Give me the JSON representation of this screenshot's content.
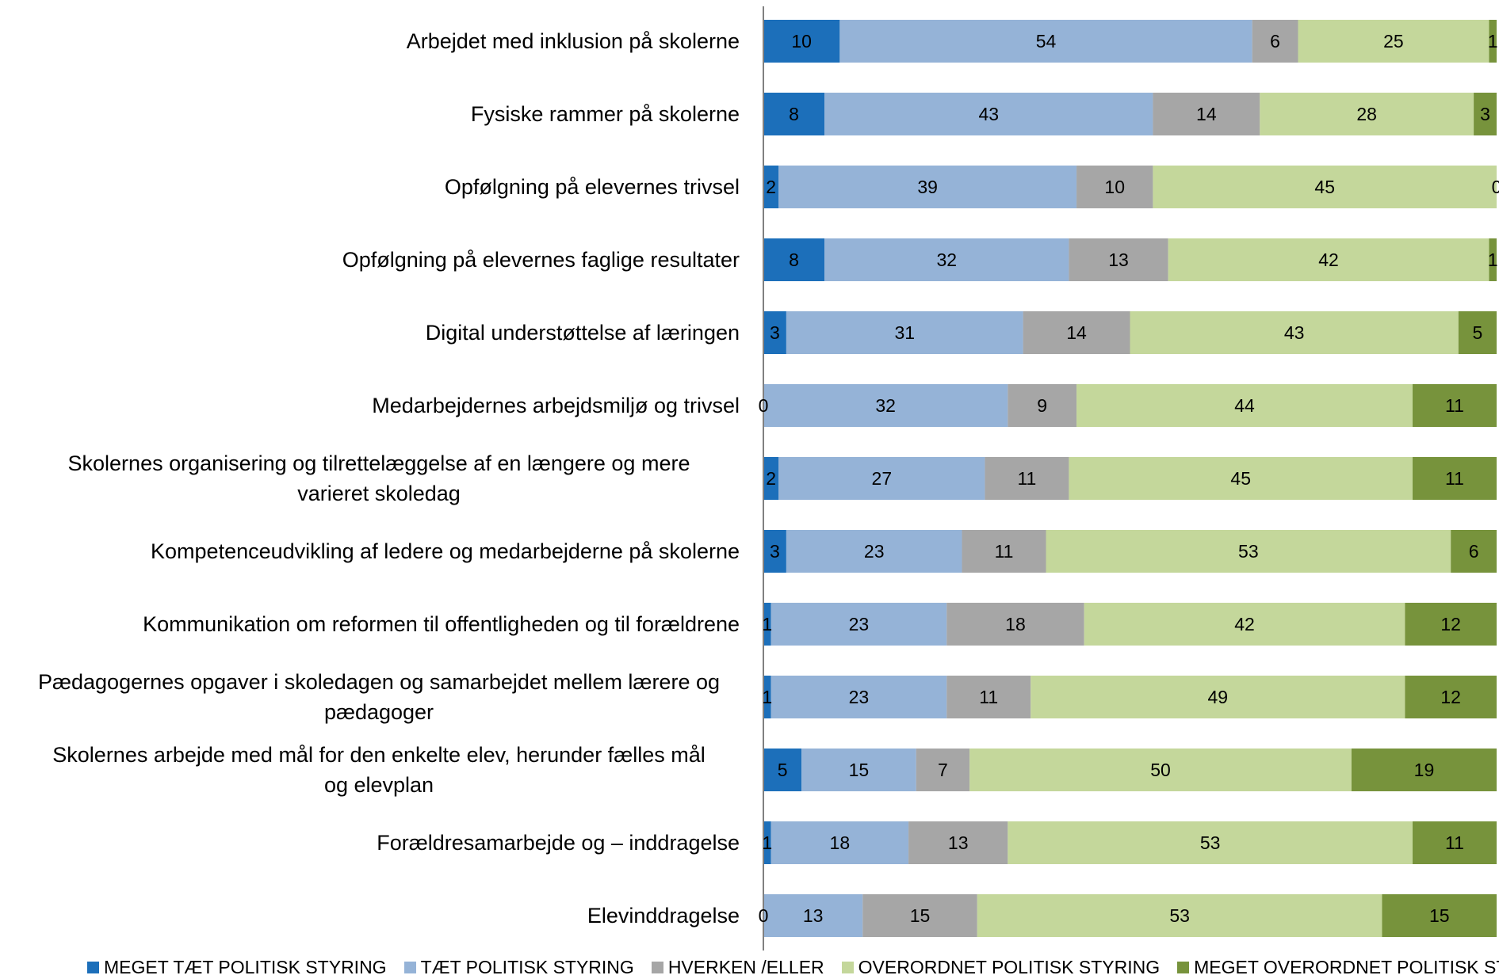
{
  "chart_data": {
    "type": "bar",
    "orientation": "horizontal",
    "stacked": true,
    "categories": [
      "Arbejdet med inklusion på skolerne",
      "Fysiske rammer på skolerne",
      "Opfølgning på elevernes trivsel",
      "Opfølgning på elevernes faglige resultater",
      "Digital understøttelse af læringen",
      "Medarbejdernes arbejdsmiljø og trivsel",
      "Skolernes organisering og tilrettelæggelse af en længere og mere varieret skoledag",
      "Kompetenceudvikling af ledere og medarbejderne på skolerne",
      "Kommunikation om reformen til offentligheden og til forældrene",
      "Pædagogernes opgaver i skoledagen og samarbejdet mellem lærere og pædagoger",
      "Skolernes arbejde med mål for den enkelte elev, herunder fælles mål og elevplan",
      "Forældresamarbejde og – inddragelse",
      "Elevinddragelse"
    ],
    "category_lines": [
      [
        "Arbejdet med inklusion på skolerne"
      ],
      [
        "Fysiske rammer på skolerne"
      ],
      [
        "Opfølgning på elevernes trivsel"
      ],
      [
        "Opfølgning på elevernes faglige resultater"
      ],
      [
        "Digital understøttelse af læringen"
      ],
      [
        "Medarbejdernes arbejdsmiljø og trivsel"
      ],
      [
        "Skolernes organisering og tilrettelæggelse af en længere og mere",
        "varieret skoledag"
      ],
      [
        "Kompetenceudvikling af ledere og medarbejderne på skolerne"
      ],
      [
        "Kommunikation om reformen til offentligheden og til forældrene"
      ],
      [
        "Pædagogernes opgaver i skoledagen og samarbejdet mellem lærere og",
        "pædagoger"
      ],
      [
        "Skolernes arbejde med mål for den enkelte elev, herunder fælles mål",
        "og elevplan"
      ],
      [
        "Forældresamarbejde og – inddragelse"
      ],
      [
        "Elevinddragelse"
      ]
    ],
    "series": [
      {
        "name": "MEGET TÆT POLITISK STYRING",
        "color": "#1C6FBA",
        "values": [
          10,
          8,
          2,
          8,
          3,
          0,
          2,
          3,
          1,
          1,
          5,
          1,
          0
        ]
      },
      {
        "name": "TÆT POLITISK STYRING",
        "color": "#95B3D7",
        "values": [
          54,
          43,
          39,
          32,
          31,
          32,
          27,
          23,
          23,
          23,
          15,
          18,
          13
        ]
      },
      {
        "name": "HVERKEN /ELLER",
        "color": "#A6A6A6",
        "values": [
          6,
          14,
          10,
          13,
          14,
          9,
          11,
          11,
          18,
          11,
          7,
          13,
          15
        ]
      },
      {
        "name": "OVERORDNET POLITISK STYRING",
        "color": "#C4D79B",
        "values": [
          25,
          28,
          45,
          42,
          43,
          44,
          45,
          53,
          42,
          49,
          50,
          53,
          53
        ]
      },
      {
        "name": "MEGET OVERORDNET POLITISK STYRING",
        "color": "#77933C",
        "values": [
          1,
          3,
          0,
          1,
          5,
          11,
          11,
          6,
          12,
          12,
          19,
          11,
          15
        ]
      }
    ],
    "xlim": [
      0,
      96
    ],
    "grid": false,
    "legend_position": "bottom"
  }
}
